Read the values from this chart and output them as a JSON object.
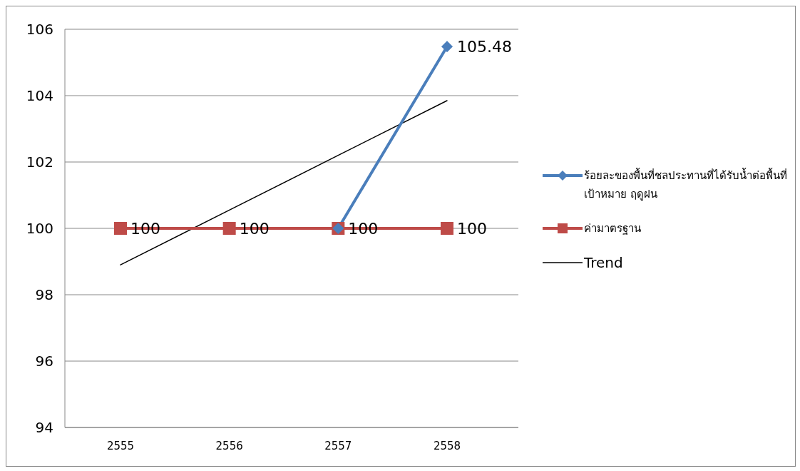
{
  "chart_data": {
    "type": "line",
    "categories": [
      "2555",
      "2556",
      "2557",
      "2558"
    ],
    "series": [
      {
        "name": "ร้อยละของพื้นที่ชลประทานที่ได้รับน้ำต่อพื้นที่เป้าหมาย ฤดูฝน",
        "color": "#4a7ebb",
        "marker": "diamond",
        "values": [
          null,
          null,
          100,
          105.48
        ],
        "value_labels": [
          null,
          null,
          null,
          "105.48"
        ]
      },
      {
        "name": "ค่ามาตรฐาน",
        "color": "#be4b48",
        "marker": "square",
        "values": [
          100,
          100,
          100,
          100
        ],
        "value_labels": [
          "100",
          "100",
          "100",
          "100"
        ]
      },
      {
        "name": "Trend",
        "type": "line",
        "color": "#000000",
        "marker": "none",
        "values": [
          98.9,
          100.55,
          102.2,
          103.85
        ]
      }
    ],
    "ylim": [
      94,
      106
    ],
    "yticks": [
      94,
      96,
      98,
      100,
      102,
      104,
      106
    ],
    "grid": "y",
    "legend": "right"
  }
}
